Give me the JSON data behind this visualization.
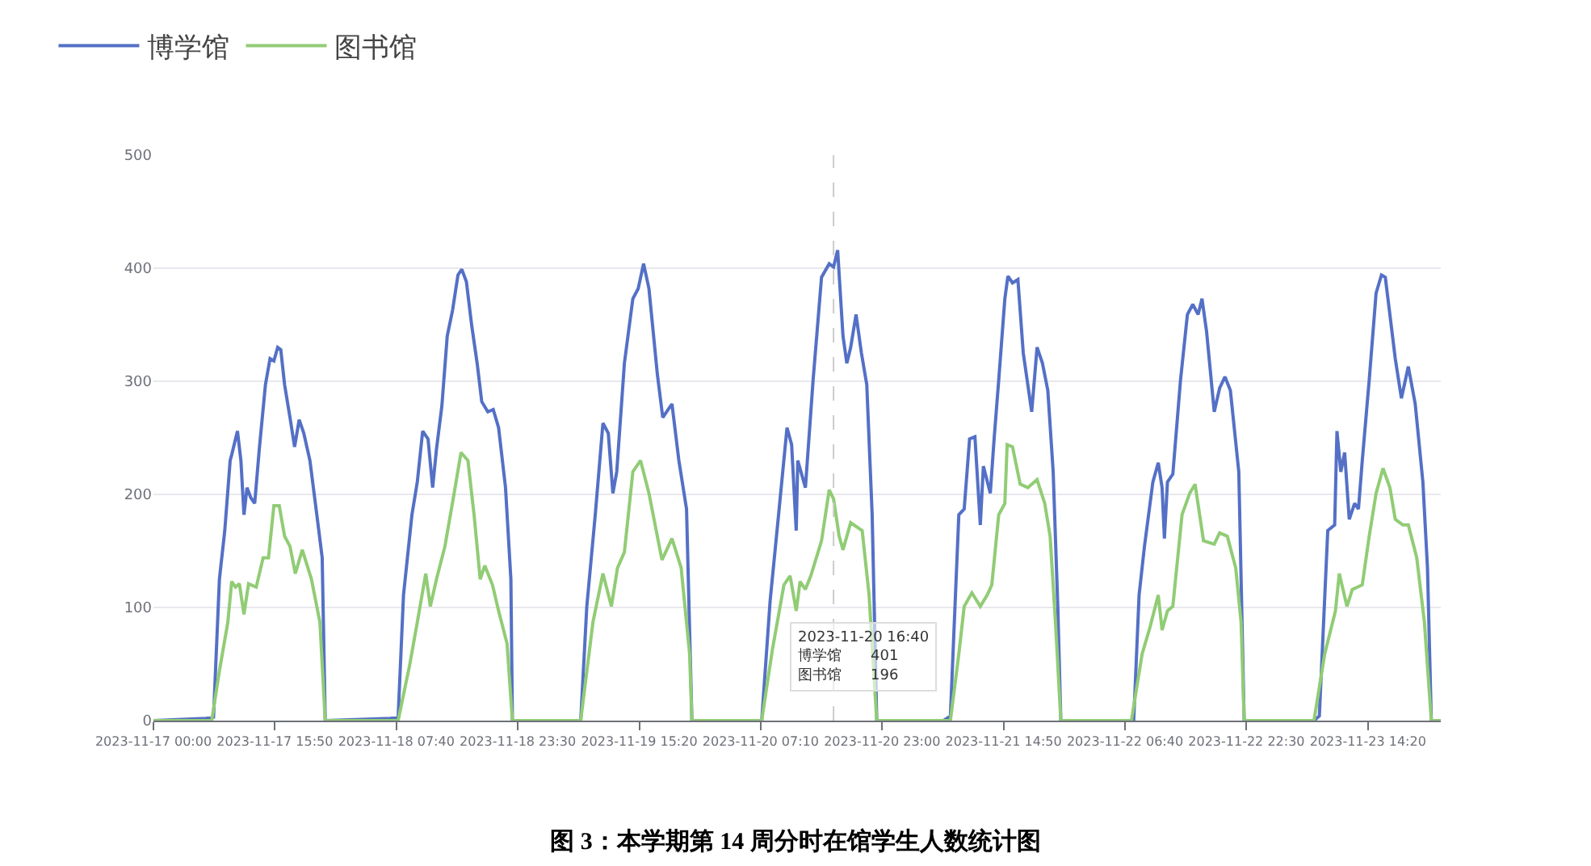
{
  "chart_data": {
    "type": "line",
    "title": "图 3：本学期第 14 周分时在馆学生人数统计图",
    "xlim": [
      "2023-11-17T00:00",
      "2023-11-23T23:50"
    ],
    "xticks": [
      {
        "value": "2023-11-17T00:00",
        "label": "2023-11-17 00:00"
      },
      {
        "value": "2023-11-17T15:50",
        "label": "2023-11-17 15:50"
      },
      {
        "value": "2023-11-18T07:40",
        "label": "2023-11-18 07:40"
      },
      {
        "value": "2023-11-18T23:30",
        "label": "2023-11-18 23:30"
      },
      {
        "value": "2023-11-19T15:20",
        "label": "2023-11-19 15:20"
      },
      {
        "value": "2023-11-20T07:10",
        "label": "2023-11-20 07:10"
      },
      {
        "value": "2023-11-20T23:00",
        "label": "2023-11-20 23:00"
      },
      {
        "value": "2023-11-21T14:50",
        "label": "2023-11-21 14:50"
      },
      {
        "value": "2023-11-22T06:40",
        "label": "2023-11-22 06:40"
      },
      {
        "value": "2023-11-22T22:30",
        "label": "2023-11-22 22:30"
      },
      {
        "value": "2023-11-23T14:20",
        "label": "2023-11-23 14:20"
      }
    ],
    "ylim": [
      0,
      500
    ],
    "yticks": [
      0,
      100,
      200,
      300,
      400,
      500
    ],
    "grid": "y",
    "legend": "top left",
    "line_style": "solid",
    "ref_lines": [
      {
        "axis": "x",
        "value": "2023-11-20T16:40",
        "color": "#cccccc",
        "line_style": "dashed"
      }
    ],
    "annotations": [
      "2023-11-20 16:40\n博学馆　　401\n图书馆　　196"
    ],
    "series": [
      {
        "name": "博学馆",
        "color": "#5470c6",
        "x": [
          "2023-11-17T00:00",
          "2023-11-17T06:50",
          "2023-11-17T07:50",
          "2023-11-17T08:36",
          "2023-11-17T09:18",
          "2023-11-17T10:00",
          "2023-11-17T10:12",
          "2023-11-17T10:57",
          "2023-11-17T11:24",
          "2023-11-17T11:48",
          "2023-11-17T12:12",
          "2023-11-17T12:42",
          "2023-11-17T13:12",
          "2023-11-17T13:48",
          "2023-11-17T14:36",
          "2023-11-17T15:12",
          "2023-11-17T15:42",
          "2023-11-17T16:12",
          "2023-11-17T16:36",
          "2023-11-17T17:06",
          "2023-11-17T17:48",
          "2023-11-17T18:24",
          "2023-11-17T19:00",
          "2023-11-17T19:36",
          "2023-11-17T20:24",
          "2023-11-17T21:18",
          "2023-11-17T22:00",
          "2023-11-17T22:24",
          "2023-11-18T06:54",
          "2023-11-18T07:54",
          "2023-11-18T08:36",
          "2023-11-18T09:42",
          "2023-11-18T10:24",
          "2023-11-18T11:06",
          "2023-11-18T11:48",
          "2023-11-18T12:24",
          "2023-11-18T12:54",
          "2023-11-18T13:36",
          "2023-11-18T14:18",
          "2023-11-18T15:00",
          "2023-11-18T15:42",
          "2023-11-18T16:12",
          "2023-11-18T16:48",
          "2023-11-18T17:30",
          "2023-11-18T18:12",
          "2023-11-18T18:48",
          "2023-11-18T19:36",
          "2023-11-18T20:18",
          "2023-11-18T21:00",
          "2023-11-18T21:54",
          "2023-11-18T22:36",
          "2023-11-18T22:48",
          "2023-11-19T07:42",
          "2023-11-19T08:30",
          "2023-11-19T09:36",
          "2023-11-19T10:36",
          "2023-11-19T11:18",
          "2023-11-19T11:54",
          "2023-11-19T12:24",
          "2023-11-19T13:24",
          "2023-11-19T14:30",
          "2023-11-19T15:12",
          "2023-11-19T15:54",
          "2023-11-19T16:36",
          "2023-11-19T17:42",
          "2023-11-19T18:24",
          "2023-11-19T19:36",
          "2023-11-19T20:30",
          "2023-11-19T21:30",
          "2023-11-19T22:12",
          "2023-11-20T07:18",
          "2023-11-20T08:24",
          "2023-11-20T09:30",
          "2023-11-20T10:36",
          "2023-11-20T11:12",
          "2023-11-20T11:48",
          "2023-11-20T12:00",
          "2023-11-20T13:00",
          "2023-11-20T14:00",
          "2023-11-20T15:06",
          "2023-11-20T16:06",
          "2023-11-20T16:40",
          "2023-11-20T17:12",
          "2023-11-20T17:54",
          "2023-11-20T18:24",
          "2023-11-20T18:54",
          "2023-11-20T19:36",
          "2023-11-20T20:18",
          "2023-11-20T21:00",
          "2023-11-20T21:42",
          "2023-11-20T22:18",
          "2023-11-21T07:00",
          "2023-11-21T07:54",
          "2023-11-21T09:00",
          "2023-11-21T09:42",
          "2023-11-21T10:24",
          "2023-11-21T11:06",
          "2023-11-21T11:48",
          "2023-11-21T12:12",
          "2023-11-21T13:06",
          "2023-11-21T13:36",
          "2023-11-21T14:12",
          "2023-11-21T15:00",
          "2023-11-21T15:24",
          "2023-11-21T16:00",
          "2023-11-21T16:42",
          "2023-11-21T17:24",
          "2023-11-21T18:30",
          "2023-11-21T19:12",
          "2023-11-21T19:54",
          "2023-11-21T20:36",
          "2023-11-21T21:18",
          "2023-11-21T21:54",
          "2023-11-21T22:18",
          "2023-11-22T07:48",
          "2023-11-22T08:30",
          "2023-11-22T09:12",
          "2023-11-22T10:18",
          "2023-11-22T11:00",
          "2023-11-22T11:30",
          "2023-11-22T11:48",
          "2023-11-22T12:12",
          "2023-11-22T12:54",
          "2023-11-22T13:54",
          "2023-11-22T14:48",
          "2023-11-22T15:30",
          "2023-11-22T16:12",
          "2023-11-22T16:42",
          "2023-11-22T17:18",
          "2023-11-22T18:18",
          "2023-11-22T19:00",
          "2023-11-22T19:42",
          "2023-11-22T20:24",
          "2023-11-22T21:30",
          "2023-11-22T22:12",
          "2023-11-23T07:18",
          "2023-11-23T08:00",
          "2023-11-23T09:06",
          "2023-11-23T10:00",
          "2023-11-23T10:18",
          "2023-11-23T10:48",
          "2023-11-23T11:18",
          "2023-11-23T11:54",
          "2023-11-23T12:36",
          "2023-11-23T13:06",
          "2023-11-23T13:36",
          "2023-11-23T14:30",
          "2023-11-23T15:24",
          "2023-11-23T16:06",
          "2023-11-23T16:36",
          "2023-11-23T17:12",
          "2023-11-23T17:54",
          "2023-11-23T18:42",
          "2023-11-23T19:36",
          "2023-11-23T20:30",
          "2023-11-23T21:30",
          "2023-11-23T22:06",
          "2023-11-23T22:36",
          "2023-11-23T23:50"
        ],
        "values": [
          0,
          2,
          3,
          125,
          168,
          230,
          235,
          256,
          230,
          182,
          206,
          197,
          192,
          240,
          297,
          320,
          318,
          330,
          328,
          297,
          268,
          242,
          266,
          254,
          230,
          182,
          144,
          0,
          2,
          3,
          111,
          182,
          211,
          256,
          249,
          206,
          240,
          278,
          340,
          363,
          394,
          399,
          388,
          349,
          316,
          282,
          273,
          275,
          259,
          206,
          125,
          0,
          0,
          101,
          182,
          263,
          254,
          201,
          220,
          316,
          373,
          382,
          404,
          382,
          306,
          268,
          280,
          230,
          187,
          0,
          0,
          106,
          182,
          259,
          244,
          168,
          230,
          206,
          301,
          392,
          404,
          401,
          416,
          340,
          316,
          330,
          359,
          325,
          297,
          182,
          0,
          0,
          4,
          182,
          187,
          249,
          251,
          173,
          225,
          201,
          249,
          301,
          373,
          393,
          387,
          390,
          325,
          273,
          330,
          316,
          292,
          220,
          101,
          0,
          0,
          111,
          154,
          211,
          228,
          206,
          161,
          211,
          218,
          301,
          359,
          368,
          359,
          373,
          344,
          273,
          294,
          304,
          292,
          220,
          0,
          0,
          4,
          168,
          173,
          256,
          220,
          237,
          178,
          192,
          187,
          230,
          301,
          378,
          394,
          392,
          359,
          320,
          285,
          313,
          280,
          211,
          135,
          0,
          0
        ]
      },
      {
        "name": "图书馆",
        "color": "#91cc75",
        "x": [
          "2023-11-17T00:00",
          "2023-11-17T07:36",
          "2023-11-17T08:36",
          "2023-11-17T09:42",
          "2023-11-17T10:12",
          "2023-11-17T10:42",
          "2023-11-17T11:12",
          "2023-11-17T11:48",
          "2023-11-17T12:24",
          "2023-11-17T13:24",
          "2023-11-17T14:18",
          "2023-11-17T15:00",
          "2023-11-17T15:42",
          "2023-11-17T16:24",
          "2023-11-17T17:06",
          "2023-11-17T17:48",
          "2023-11-17T18:30",
          "2023-11-17T19:24",
          "2023-11-17T20:36",
          "2023-11-17T21:42",
          "2023-11-17T22:24",
          "2023-11-18T07:54",
          "2023-11-18T09:24",
          "2023-11-18T10:24",
          "2023-11-18T11:30",
          "2023-11-18T12:06",
          "2023-11-18T12:54",
          "2023-11-18T14:00",
          "2023-11-18T15:06",
          "2023-11-18T16:06",
          "2023-11-18T17:00",
          "2023-11-18T17:48",
          "2023-11-18T18:36",
          "2023-11-18T19:12",
          "2023-11-18T20:12",
          "2023-11-18T21:00",
          "2023-11-18T22:06",
          "2023-11-18T22:48",
          "2023-11-19T07:42",
          "2023-11-19T09:18",
          "2023-11-19T10:36",
          "2023-11-19T11:42",
          "2023-11-19T12:30",
          "2023-11-19T13:24",
          "2023-11-19T14:30",
          "2023-11-19T15:30",
          "2023-11-19T16:36",
          "2023-11-19T18:18",
          "2023-11-19T19:36",
          "2023-11-19T20:48",
          "2023-11-19T21:54",
          "2023-11-19T22:12",
          "2023-11-20T07:18",
          "2023-11-20T08:42",
          "2023-11-20T10:12",
          "2023-11-20T11:00",
          "2023-11-20T11:48",
          "2023-11-20T12:18",
          "2023-11-20T13:00",
          "2023-11-20T13:42",
          "2023-11-20T15:06",
          "2023-11-20T16:06",
          "2023-11-20T16:40",
          "2023-11-20T17:24",
          "2023-11-20T17:54",
          "2023-11-20T18:54",
          "2023-11-20T20:24",
          "2023-11-20T21:18",
          "2023-11-20T22:18",
          "2023-11-21T07:54",
          "2023-11-21T09:00",
          "2023-11-21T09:42",
          "2023-11-21T10:42",
          "2023-11-21T11:48",
          "2023-11-21T12:42",
          "2023-11-21T13:18",
          "2023-11-21T14:12",
          "2023-11-21T15:00",
          "2023-11-21T15:18",
          "2023-11-21T16:00",
          "2023-11-21T17:00",
          "2023-11-21T18:00",
          "2023-11-21T19:12",
          "2023-11-21T20:12",
          "2023-11-21T20:54",
          "2023-11-21T21:36",
          "2023-11-21T22:18",
          "2023-11-22T07:30",
          "2023-11-22T08:54",
          "2023-11-22T09:54",
          "2023-11-22T11:00",
          "2023-11-22T11:30",
          "2023-11-22T12:12",
          "2023-11-22T12:54",
          "2023-11-22T14:06",
          "2023-11-22T15:06",
          "2023-11-22T15:48",
          "2023-11-22T16:54",
          "2023-11-22T18:18",
          "2023-11-22T19:00",
          "2023-11-22T20:00",
          "2023-11-22T21:06",
          "2023-11-22T21:48",
          "2023-11-22T22:12",
          "2023-11-23T07:18",
          "2023-11-23T08:42",
          "2023-11-23T10:06",
          "2023-11-23T10:36",
          "2023-11-23T11:36",
          "2023-11-23T12:18",
          "2023-11-23T13:36",
          "2023-11-23T14:30",
          "2023-11-23T15:24",
          "2023-11-23T16:18",
          "2023-11-23T17:12",
          "2023-11-23T17:54",
          "2023-11-23T18:54",
          "2023-11-23T19:36",
          "2023-11-23T20:42",
          "2023-11-23T21:42",
          "2023-11-23T22:36",
          "2023-11-23T23:50"
        ],
        "values": [
          0,
          0,
          44,
          87,
          123,
          118,
          121,
          94,
          121,
          118,
          144,
          144,
          190,
          190,
          163,
          154,
          130,
          151,
          125,
          87,
          0,
          0,
          49,
          87,
          130,
          101,
          125,
          154,
          197,
          237,
          230,
          182,
          125,
          137,
          120,
          97,
          68,
          0,
          0,
          87,
          130,
          101,
          135,
          149,
          220,
          230,
          201,
          142,
          161,
          135,
          59,
          0,
          0,
          63,
          120,
          128,
          97,
          123,
          116,
          128,
          159,
          204,
          196,
          163,
          151,
          175,
          168,
          111,
          0,
          0,
          59,
          101,
          113,
          101,
          111,
          120,
          182,
          192,
          244,
          242,
          209,
          206,
          213,
          192,
          163,
          87,
          0,
          0,
          59,
          82,
          111,
          80,
          97,
          101,
          182,
          201,
          209,
          159,
          156,
          166,
          163,
          135,
          87,
          0,
          0,
          59,
          97,
          130,
          101,
          116,
          120,
          163,
          201,
          223,
          206,
          178,
          173,
          173,
          144,
          87,
          0,
          0
        ]
      }
    ]
  }
}
